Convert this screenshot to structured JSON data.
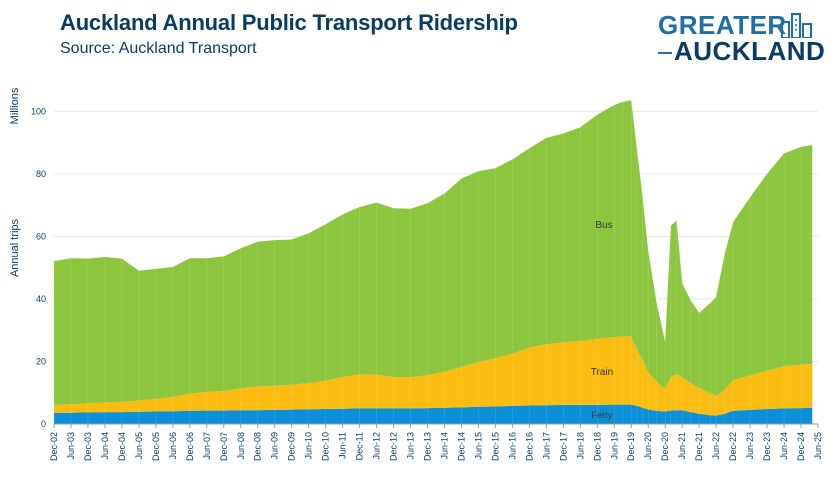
{
  "header": {
    "title": "Auckland Annual Public Transport Ridership",
    "subtitle": "Source: Auckland Transport"
  },
  "logo": {
    "line1": "GREATER",
    "line2": "AUCKLAND"
  },
  "colors": {
    "ferry": "#0b8fd6",
    "train": "#fcbd12",
    "bus": "#8cc63f",
    "text": "#0b3b63",
    "grid": "#e6e6e6"
  },
  "chart_data": {
    "type": "area",
    "stacked": true,
    "ylabel_units": "Millions",
    "ylabel": "Annual trips",
    "ylim": [
      0,
      110
    ],
    "yticks": [
      0,
      20,
      40,
      60,
      80,
      100
    ],
    "xlim": [
      "Dec-02",
      "Jun-25"
    ],
    "xticks": [
      "Dec-02",
      "Jun-03",
      "Dec-03",
      "Jun-04",
      "Dec-04",
      "Jun-05",
      "Dec-05",
      "Jun-06",
      "Dec-06",
      "Jun-07",
      "Dec-07",
      "Jun-08",
      "Dec-08",
      "Jun-09",
      "Dec-09",
      "Jun-10",
      "Dec-10",
      "Jun-11",
      "Dec-11",
      "Jun-12",
      "Dec-12",
      "Jun-13",
      "Dec-13",
      "Jun-14",
      "Dec-14",
      "Jun-15",
      "Dec-15",
      "Jun-16",
      "Dec-16",
      "Jun-17",
      "Dec-17",
      "Jun-18",
      "Dec-18",
      "Jun-19",
      "Dec-19",
      "Jun-20",
      "Dec-20",
      "Jun-21",
      "Dec-21",
      "Jun-22",
      "Dec-22",
      "Jun-23",
      "Dec-23",
      "Jun-24",
      "Dec-24",
      "Jun-25"
    ],
    "x": [
      "Dec-02",
      "Jun-03",
      "Dec-03",
      "Jun-04",
      "Dec-04",
      "Jun-05",
      "Dec-05",
      "Jun-06",
      "Dec-06",
      "Jun-07",
      "Dec-07",
      "Jun-08",
      "Dec-08",
      "Jun-09",
      "Dec-09",
      "Jun-10",
      "Dec-10",
      "Jun-11",
      "Dec-11",
      "Jun-12",
      "Dec-12",
      "Jun-13",
      "Dec-13",
      "Jun-14",
      "Dec-14",
      "Jun-15",
      "Dec-15",
      "Jun-16",
      "Dec-16",
      "Jun-17",
      "Dec-17",
      "Jun-18",
      "Dec-18",
      "Jun-19",
      "Sep-19",
      "Dec-19",
      "Feb-20",
      "Apr-20",
      "Jun-20",
      "Sep-20",
      "Dec-20",
      "Feb-21",
      "Apr-21",
      "Jun-21",
      "Sep-21",
      "Dec-21",
      "Apr-22",
      "Jun-22",
      "Sep-22",
      "Dec-22",
      "Jun-23",
      "Dec-23",
      "Jun-24",
      "Dec-24",
      "Apr-25"
    ],
    "series": [
      {
        "name": "Ferry",
        "values": [
          3.6,
          3.6,
          3.7,
          3.8,
          3.8,
          3.9,
          4.0,
          4.1,
          4.2,
          4.3,
          4.3,
          4.4,
          4.4,
          4.5,
          4.6,
          4.7,
          4.8,
          4.9,
          5.0,
          5.0,
          5.0,
          5.0,
          5.1,
          5.2,
          5.3,
          5.5,
          5.6,
          5.8,
          5.9,
          6.0,
          6.1,
          6.1,
          6.1,
          6.2,
          6.2,
          6.2,
          5.8,
          5.2,
          4.6,
          4.2,
          4.0,
          4.3,
          4.4,
          4.4,
          3.8,
          3.3,
          2.8,
          2.7,
          3.3,
          4.2,
          4.5,
          4.8,
          5.0,
          5.1,
          5.2
        ]
      },
      {
        "name": "Train",
        "values": [
          2.5,
          2.7,
          2.9,
          3.1,
          3.3,
          3.6,
          4.0,
          4.6,
          5.5,
          6.0,
          6.3,
          7.0,
          7.6,
          7.7,
          8.0,
          8.3,
          9.1,
          10.1,
          10.9,
          10.8,
          10.0,
          10.0,
          10.5,
          11.5,
          13.0,
          14.3,
          15.4,
          16.7,
          18.5,
          19.5,
          20.0,
          20.4,
          21.1,
          21.6,
          21.8,
          21.8,
          18.0,
          15.3,
          12.0,
          9.3,
          7.2,
          10.7,
          11.6,
          10.6,
          9.2,
          8.2,
          7.0,
          6.3,
          7.5,
          9.8,
          11.0,
          12.2,
          13.5,
          13.9,
          14.0
        ]
      },
      {
        "name": "Bus",
        "values": [
          46.0,
          46.7,
          46.3,
          46.5,
          45.8,
          41.5,
          41.6,
          41.5,
          43.3,
          42.7,
          43.0,
          44.8,
          46.3,
          46.6,
          46.4,
          48.0,
          50.0,
          52.0,
          53.5,
          55.0,
          54.0,
          53.8,
          55.0,
          57.0,
          60.2,
          61.0,
          60.8,
          62.1,
          63.8,
          66.0,
          66.8,
          68.4,
          71.7,
          74.2,
          75.0,
          75.5,
          64.0,
          52.0,
          38.8,
          25.0,
          15.0,
          48.5,
          49.0,
          30.0,
          26.5,
          24.0,
          29.0,
          31.5,
          43.5,
          50.5,
          57.0,
          63.0,
          68.0,
          69.6,
          70.0
        ]
      }
    ],
    "annotations": [
      {
        "text": "Bus",
        "series": "Bus"
      },
      {
        "text": "Train",
        "series": "Train"
      },
      {
        "text": "Ferry",
        "series": "Ferry"
      }
    ],
    "grid": true,
    "legend": "inline"
  }
}
